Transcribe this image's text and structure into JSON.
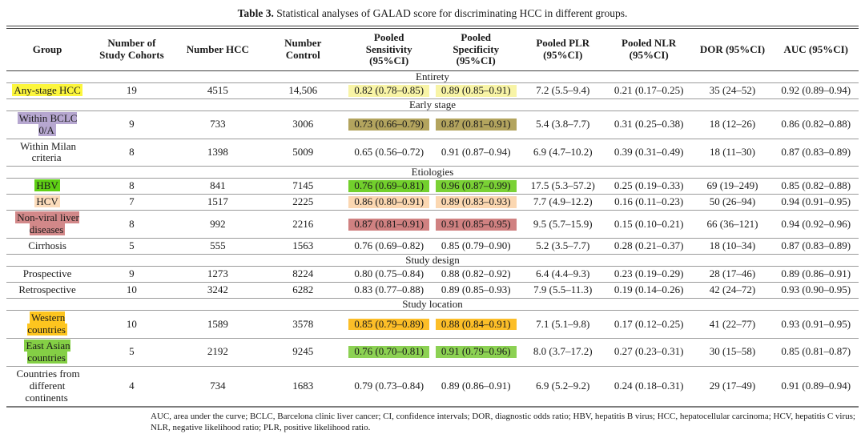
{
  "caption": {
    "label": "Table 3.",
    "text": " Statistical analyses of GALAD score for discriminating HCC in different groups."
  },
  "table": {
    "columns": [
      {
        "lines": [
          "Group"
        ]
      },
      {
        "lines": [
          "Number of",
          "Study Cohorts"
        ]
      },
      {
        "lines": [
          "Number HCC"
        ]
      },
      {
        "lines": [
          "Number",
          "Control"
        ]
      },
      {
        "lines": [
          "Pooled",
          "Sensitivity",
          "(95%CI)"
        ]
      },
      {
        "lines": [
          "Pooled",
          "Specificity",
          "(95%CI)"
        ]
      },
      {
        "lines": [
          "Pooled PLR",
          "(95%CI)"
        ]
      },
      {
        "lines": [
          "Pooled NLR",
          "(95%CI)"
        ]
      },
      {
        "lines": [
          "DOR (95%CI)"
        ]
      },
      {
        "lines": [
          "AUC (95%CI)"
        ]
      }
    ],
    "sections": [
      {
        "name": "Entirety",
        "rows": [
          {
            "group": "Any-stage HCC",
            "group_hl": "#fcf63d",
            "cohorts": "19",
            "hcc": "4515",
            "control": "14,506",
            "sensitivity": "0.82 (0.78–0.85)",
            "sensitivity_hl": "#f8f4a6",
            "specificity": "0.89 (0.85–0.91)",
            "specificity_hl": "#f8f4a6",
            "plr": "7.2 (5.5–9.4)",
            "nlr": "0.21 (0.17–0.25)",
            "dor": "35 (24–52)",
            "auc": "0.92 (0.89–0.94)"
          }
        ]
      },
      {
        "name": "Early stage",
        "rows": [
          {
            "group": "Within BCLC\n0/A",
            "group_hl": "#b6a7d0",
            "cohorts": "9",
            "hcc": "733",
            "control": "3006",
            "sensitivity": "0.73 (0.66–0.79)",
            "sensitivity_hl": "#b3a45e",
            "specificity": "0.87 (0.81–0.91)",
            "specificity_hl": "#b3a45e",
            "plr": "5.4 (3.8–7.7)",
            "nlr": "0.31 (0.25–0.38)",
            "dor": "18 (12–26)",
            "auc": "0.86 (0.82–0.88)"
          },
          {
            "group": "Within Milan\ncriteria",
            "group_hl": null,
            "cohorts": "8",
            "hcc": "1398",
            "control": "5009",
            "sensitivity": "0.65 (0.56–0.72)",
            "sensitivity_hl": null,
            "specificity": "0.91 (0.87–0.94)",
            "specificity_hl": null,
            "plr": "6.9 (4.7–10.2)",
            "nlr": "0.39 (0.31–0.49)",
            "dor": "18 (11–30)",
            "auc": "0.87 (0.83–0.89)"
          }
        ]
      },
      {
        "name": "Etiologies",
        "rows": [
          {
            "group": "HBV",
            "group_hl": "#5fd014",
            "cohorts": "8",
            "hcc": "841",
            "control": "7145",
            "sensitivity": "0.76 (0.69–0.81)",
            "sensitivity_hl": "#72d02c",
            "specificity": "0.96 (0.87–0.99)",
            "specificity_hl": "#7ad135",
            "plr": "17.5 (5.3–57.2)",
            "nlr": "0.25 (0.19–0.33)",
            "dor": "69 (19–249)",
            "auc": "0.85 (0.82–0.88)"
          },
          {
            "group": "HCV",
            "group_hl": "#fcdcbb",
            "cohorts": "7",
            "hcc": "1517",
            "control": "2225",
            "sensitivity": "0.86 (0.80–0.91)",
            "sensitivity_hl": "#fbd7b1",
            "specificity": "0.89 (0.83–0.93)",
            "specificity_hl": "#fbd7b1",
            "plr": "7.7 (4.9–12.2)",
            "nlr": "0.16 (0.11–0.23)",
            "dor": "50 (26–94)",
            "auc": "0.94 (0.91–0.95)"
          },
          {
            "group": "Non-viral liver\ndiseases",
            "group_hl": "#d28889",
            "cohorts": "8",
            "hcc": "992",
            "control": "2216",
            "sensitivity": "0.87 (0.81–0.91)",
            "sensitivity_hl": "#d08181",
            "specificity": "0.91 (0.85–0.95)",
            "specificity_hl": "#d08181",
            "plr": "9.5 (5.7–15.9)",
            "nlr": "0.15 (0.10–0.21)",
            "dor": "66 (36–121)",
            "auc": "0.94 (0.92–0.96)"
          },
          {
            "group": "Cirrhosis",
            "group_hl": null,
            "cohorts": "5",
            "hcc": "555",
            "control": "1563",
            "sensitivity": "0.76 (0.69–0.82)",
            "sensitivity_hl": null,
            "specificity": "0.85 (0.79–0.90)",
            "specificity_hl": null,
            "plr": "5.2 (3.5–7.7)",
            "nlr": "0.28 (0.21–0.37)",
            "dor": "18 (10–34)",
            "auc": "0.87 (0.83–0.89)"
          }
        ]
      },
      {
        "name": "Study design",
        "rows": [
          {
            "group": "Prospective",
            "group_hl": null,
            "cohorts": "9",
            "hcc": "1273",
            "control": "8224",
            "sensitivity": "0.80 (0.75–0.84)",
            "sensitivity_hl": null,
            "specificity": "0.88 (0.82–0.92)",
            "specificity_hl": null,
            "plr": "6.4 (4.4–9.3)",
            "nlr": "0.23 (0.19–0.29)",
            "dor": "28 (17–46)",
            "auc": "0.89 (0.86–0.91)"
          },
          {
            "group": "Retrospective",
            "group_hl": null,
            "cohorts": "10",
            "hcc": "3242",
            "control": "6282",
            "sensitivity": "0.83 (0.77–0.88)",
            "sensitivity_hl": null,
            "specificity": "0.89 (0.85–0.93)",
            "specificity_hl": null,
            "plr": "7.9 (5.5–11.3)",
            "nlr": "0.19 (0.14–0.26)",
            "dor": "42 (24–72)",
            "auc": "0.93 (0.90–0.95)"
          }
        ]
      },
      {
        "name": "Study location",
        "rows": [
          {
            "group": "Western\ncountries",
            "group_hl": "#fdc51f",
            "cohorts": "10",
            "hcc": "1589",
            "control": "3578",
            "sensitivity": "0.85 (0.79–0.89)",
            "sensitivity_hl": "#fcbe28",
            "specificity": "0.88 (0.84–0.91)",
            "specificity_hl": "#fcbe28",
            "plr": "7.1 (5.1–9.8)",
            "nlr": "0.17 (0.12–0.25)",
            "dor": "41 (22–77)",
            "auc": "0.93 (0.91–0.95)"
          },
          {
            "group": "East Asian\ncountries",
            "group_hl": "#84cf45",
            "cohorts": "5",
            "hcc": "2192",
            "control": "9245",
            "sensitivity": "0.76 (0.70–0.81)",
            "sensitivity_hl": "#8cd153",
            "specificity": "0.91 (0.79–0.96)",
            "specificity_hl": "#8cd153",
            "plr": "8.0 (3.7–17.2)",
            "nlr": "0.27 (0.23–0.31)",
            "dor": "30 (15–58)",
            "auc": "0.85 (0.81–0.87)"
          },
          {
            "group": "Countries from\ndifferent\ncontinents",
            "group_hl": null,
            "cohorts": "4",
            "hcc": "734",
            "control": "1683",
            "sensitivity": "0.79 (0.73–0.84)",
            "sensitivity_hl": null,
            "specificity": "0.89 (0.86–0.91)",
            "specificity_hl": null,
            "plr": "6.9 (5.2–9.2)",
            "nlr": "0.24 (0.18–0.31)",
            "dor": "29 (17–49)",
            "auc": "0.91 (0.89–0.94)"
          }
        ]
      }
    ]
  },
  "footnote": "AUC, area under the curve; BCLC, Barcelona clinic liver cancer; CI, confidence intervals; DOR, diagnostic odds ratio; HBV, hepatitis B virus; HCC, hepatocellular carcinoma; HCV, hepatitis C virus; NLR, negative likelihood ratio; PLR, positive likelihood ratio."
}
